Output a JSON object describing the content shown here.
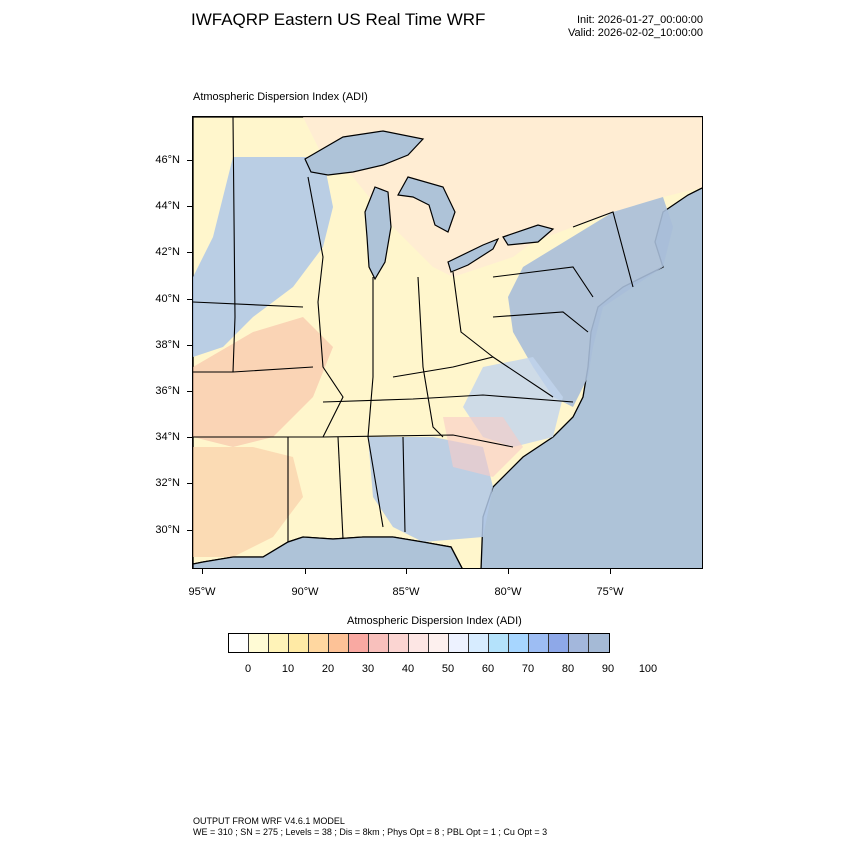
{
  "header": {
    "title": "IWFAQRP Eastern US Real Time WRF",
    "init": "Init: 2026-01-27_00:00:00",
    "valid": "Valid: 2026-02-02_10:00:00"
  },
  "map": {
    "field_title": "Atmospheric Dispersion Index   (ADI)",
    "lat_labels": [
      "46°N",
      "44°N",
      "42°N",
      "40°N",
      "38°N",
      "36°N",
      "34°N",
      "32°N",
      "30°N"
    ],
    "lon_labels": [
      "95°W",
      "90°W",
      "85°W",
      "80°W",
      "75°W"
    ],
    "water_color": "#aec3d8",
    "land_base_color": "#fff6cc"
  },
  "colorbar": {
    "title": "Atmospheric Dispersion Index  (ADI)",
    "colors": [
      "#ffffff",
      "#fffbd5",
      "#fff3b8",
      "#ffeaa5",
      "#ffd7a0",
      "#fdc297",
      "#f9a9a2",
      "#f8c0bc",
      "#fbd5d2",
      "#fde6e4",
      "#fdf0ee",
      "#edf2ff",
      "#d7ecff",
      "#b4e2fb",
      "#a7d6ff",
      "#9dbdf3",
      "#8ea8e8",
      "#a3b7dc",
      "#a5bad6"
    ],
    "labels": [
      "0",
      "10",
      "20",
      "30",
      "40",
      "50",
      "60",
      "70",
      "80",
      "90",
      "100"
    ]
  },
  "footer": {
    "line1": "OUTPUT FROM WRF V4.6.1 MODEL",
    "line2": "WE = 310 ; SN = 275 ; Levels = 38 ; Dis = 8km ; Phys Opt = 8 ; PBL Opt = 1 ; Cu Opt = 3"
  }
}
